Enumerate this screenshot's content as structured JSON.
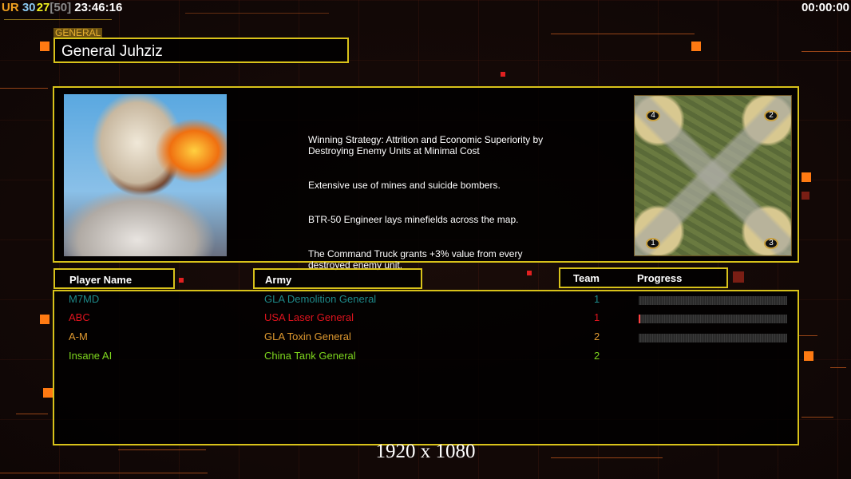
{
  "hud": {
    "ur": "UR",
    "num1": "30",
    "num2": "27",
    "bracket": "[50]",
    "clock": "23:46:16",
    "timer": "00:00:00"
  },
  "general": {
    "section_label": "GENERAL",
    "name": "General Juhziz"
  },
  "strategy": [
    "Winning Strategy: Attrition and Economic Superiority by\n Destroying Enemy Units at Minimal Cost",
    "Extensive use of mines and suicide bombers.",
    "BTR-50 Engineer lays minefields across the map.",
    "The Command Truck grants +3% value from every\n destroyed enemy unit."
  ],
  "minimap": {
    "start_positions": [
      "1",
      "2",
      "3",
      "4"
    ]
  },
  "headers": {
    "player": "Player Name",
    "army": "Army",
    "team": "Team",
    "progress": "Progress"
  },
  "players": [
    {
      "name": "M7MD",
      "army": "GLA Demolition General",
      "team": "1",
      "color": "#1e8a8a",
      "progress": 0
    },
    {
      "name": "ABC",
      "army": "USA Laser General",
      "team": "1",
      "color": "#e0141e",
      "progress": 1
    },
    {
      "name": "A-M",
      "army": "GLA Toxin General",
      "team": "2",
      "color": "#e09a30",
      "progress": 0
    },
    {
      "name": "Insane AI",
      "army": "China Tank General",
      "team": "2",
      "color": "#7ed61e",
      "progress": null
    }
  ],
  "resolution": "1920 x 1080"
}
